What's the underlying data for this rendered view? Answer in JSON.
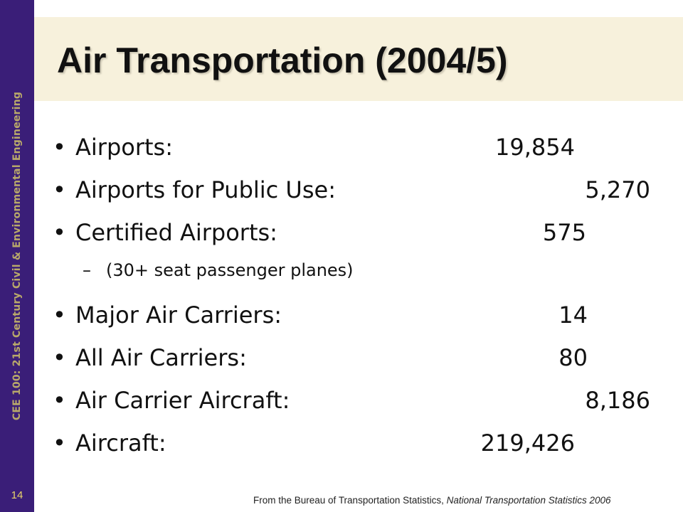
{
  "sidebar": {
    "text": "CEE 100: 21st Century Civil & Environmental Engineering",
    "page_number": "14"
  },
  "title": "Air Transportation (2004/5)",
  "bullet_char": "•",
  "dash_char": "–",
  "items": [
    {
      "label": "Airports:",
      "value": "19,854"
    },
    {
      "label": "Airports for Public Use:",
      "value": "5,270"
    },
    {
      "label": "Certified Airports:",
      "value": "575"
    },
    {
      "label": "Major Air Carriers:",
      "value": "14"
    },
    {
      "label": "All Air Carriers:",
      "value": "80"
    },
    {
      "label": "Air Carrier Aircraft:",
      "value": "8,186"
    },
    {
      "label": "Aircraft:",
      "value": "219,426"
    }
  ],
  "subitem": "(30+ seat passenger planes)",
  "source": {
    "prefix": "From the Bureau of Transportation Statistics, ",
    "publication": "National Transportation Statistics 2006"
  }
}
